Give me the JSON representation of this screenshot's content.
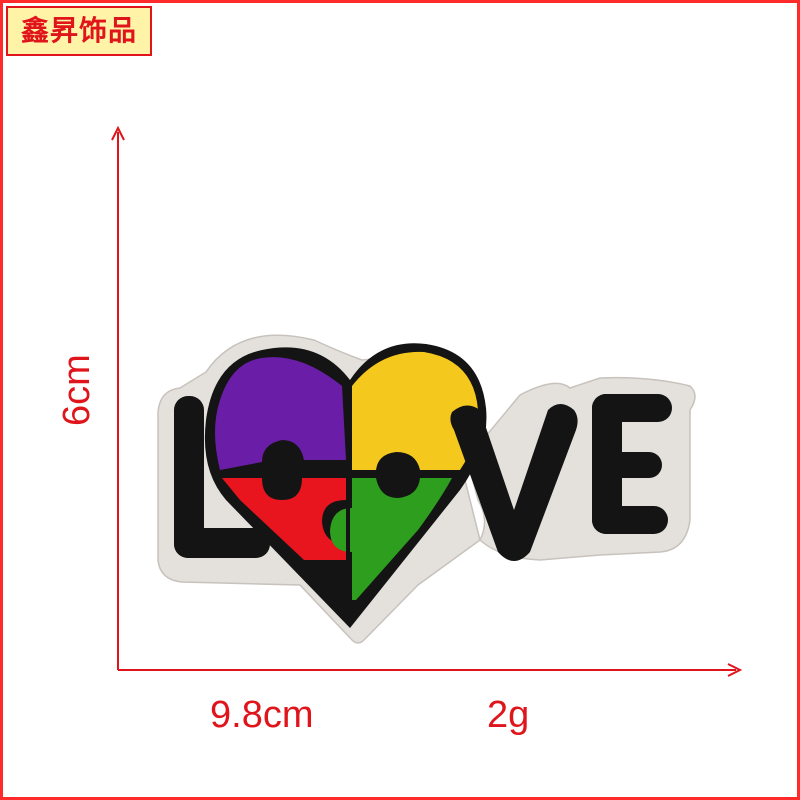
{
  "brand": {
    "label": "鑫昇饰品"
  },
  "dimensions": {
    "height": "6cm",
    "width": "9.8cm",
    "weight": "2g"
  },
  "patch": {
    "letters": [
      "L",
      "V",
      "E"
    ],
    "heart_colors": [
      "#6a1ea8",
      "#f5c81e",
      "#e8141e",
      "#2e9e1e"
    ]
  }
}
